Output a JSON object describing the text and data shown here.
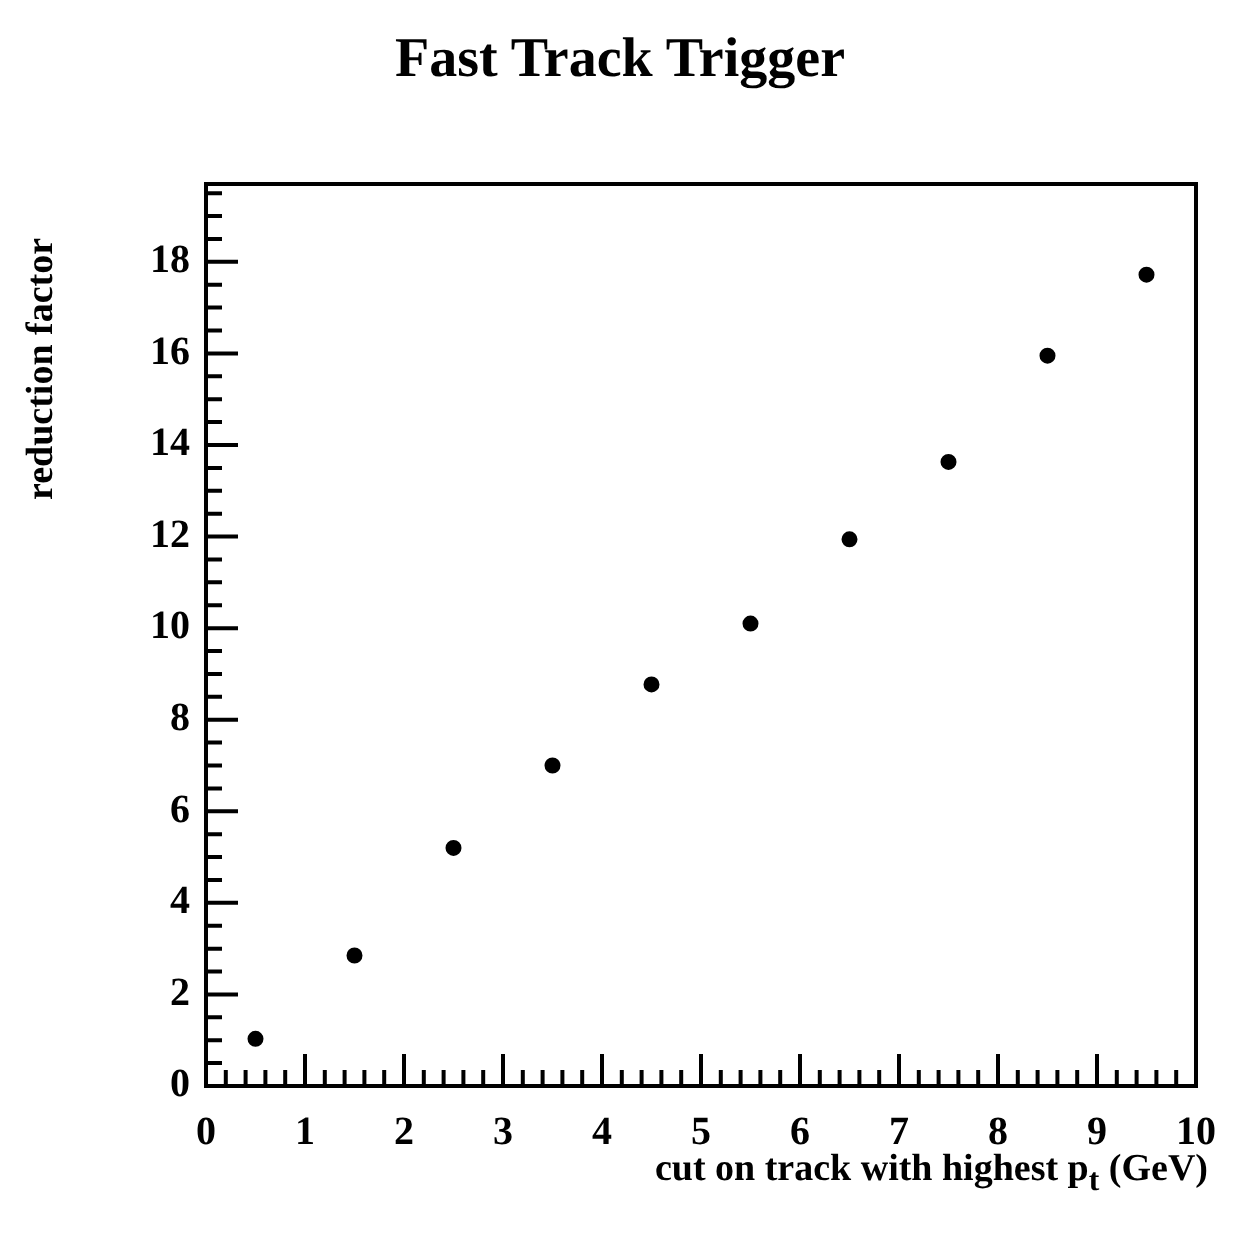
{
  "chart_data": {
    "type": "scatter",
    "title": "Fast Track Trigger",
    "xlabel": "cut on track with highest p$_{t}$ (GeV)",
    "ylabel": "reduction factor",
    "x": [
      0.5,
      1.5,
      2.5,
      3.5,
      4.5,
      5.5,
      6.5,
      7.5,
      8.5,
      9.5
    ],
    "values": [
      1.03,
      2.85,
      5.2,
      7.0,
      8.77,
      10.1,
      11.94,
      13.63,
      15.95,
      17.72
    ],
    "color": "#000000",
    "marker": "circle",
    "grid": false,
    "legend": false,
    "xlim": [
      0,
      10
    ],
    "ylim": [
      0,
      19.7
    ],
    "xticks": [
      0,
      {
        "value": 0.2,
        "label": null
      },
      {
        "value": 0.4,
        "label": null
      },
      {
        "value": 0.6,
        "label": null
      },
      {
        "value": 0.8,
        "label": null
      },
      1,
      {
        "value": 1.2,
        "label": null
      },
      {
        "value": 1.4,
        "label": null
      },
      {
        "value": 1.6,
        "label": null
      },
      {
        "value": 1.8,
        "label": null
      },
      2,
      {
        "value": 2.2,
        "label": null
      },
      {
        "value": 2.4,
        "label": null
      },
      {
        "value": 2.6,
        "label": null
      },
      {
        "value": 2.8,
        "label": null
      },
      3,
      {
        "value": 3.2,
        "label": null
      },
      {
        "value": 3.4,
        "label": null
      },
      {
        "value": 3.6,
        "label": null
      },
      {
        "value": 3.8,
        "label": null
      },
      4,
      {
        "value": 4.2,
        "label": null
      },
      {
        "value": 4.4,
        "label": null
      },
      {
        "value": 4.6,
        "label": null
      },
      {
        "value": 4.8,
        "label": null
      },
      5,
      {
        "value": 5.2,
        "label": null
      },
      {
        "value": 5.4,
        "label": null
      },
      {
        "value": 5.6,
        "label": null
      },
      {
        "value": 5.8,
        "label": null
      },
      6,
      {
        "value": 6.2,
        "label": null
      },
      {
        "value": 6.4,
        "label": null
      },
      {
        "value": 6.6,
        "label": null
      },
      {
        "value": 6.8,
        "label": null
      },
      7,
      {
        "value": 7.2,
        "label": null
      },
      {
        "value": 7.4,
        "label": null
      },
      {
        "value": 7.6,
        "label": null
      },
      {
        "value": 7.8,
        "label": null
      },
      8,
      {
        "value": 8.2,
        "label": null
      },
      {
        "value": 8.4,
        "label": null
      },
      {
        "value": 8.6,
        "label": null
      },
      {
        "value": 8.8,
        "label": null
      },
      9,
      {
        "value": 9.2,
        "label": null
      },
      {
        "value": 9.4,
        "label": null
      },
      {
        "value": 9.6,
        "label": null
      },
      {
        "value": 9.8,
        "label": null
      },
      10
    ],
    "yticks": [
      0,
      {
        "value": 0.5,
        "label": null
      },
      {
        "value": 1,
        "label": null
      },
      {
        "value": 1.5,
        "label": null
      },
      2,
      {
        "value": 2.5,
        "label": null
      },
      {
        "value": 3,
        "label": null
      },
      {
        "value": 3.5,
        "label": null
      },
      4,
      {
        "value": 4.5,
        "label": null
      },
      {
        "value": 5,
        "label": null
      },
      {
        "value": 5.5,
        "label": null
      },
      6,
      {
        "value": 6.5,
        "label": null
      },
      {
        "value": 7,
        "label": null
      },
      {
        "value": 7.5,
        "label": null
      },
      8,
      {
        "value": 8.5,
        "label": null
      },
      {
        "value": 9,
        "label": null
      },
      {
        "value": 9.5,
        "label": null
      },
      10,
      {
        "value": 10.5,
        "label": null
      },
      {
        "value": 11,
        "label": null
      },
      {
        "value": 11.5,
        "label": null
      },
      12,
      {
        "value": 12.5,
        "label": null
      },
      {
        "value": 13,
        "label": null
      },
      {
        "value": 13.5,
        "label": null
      },
      14,
      {
        "value": 14.5,
        "label": null
      },
      {
        "value": 15,
        "label": null
      },
      {
        "value": 15.5,
        "label": null
      },
      16,
      {
        "value": 16.5,
        "label": null
      },
      {
        "value": 17,
        "label": null
      },
      {
        "value": 17.5,
        "label": null
      },
      18,
      {
        "value": 18.5,
        "label": null
      },
      {
        "value": 19,
        "label": null
      },
      {
        "value": 19.5,
        "label": null
      }
    ]
  }
}
